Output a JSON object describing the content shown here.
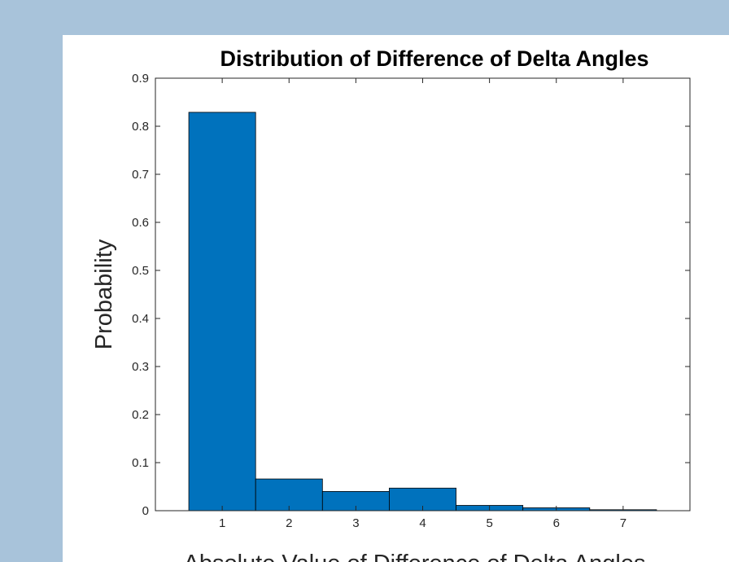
{
  "chart_data": {
    "type": "bar",
    "title": "Distribution of Difference of Delta Angles",
    "xlabel": "Absolute Value of Difference of Delta Angles",
    "ylabel": "Probability",
    "categories": [
      "1",
      "2",
      "3",
      "4",
      "5",
      "6",
      "7"
    ],
    "values": [
      0.829,
      0.066,
      0.04,
      0.047,
      0.011,
      0.006,
      0.002
    ],
    "xlim": [
      0,
      8
    ],
    "ylim": [
      0,
      0.9
    ],
    "yticks": [
      "0",
      "0.1",
      "0.2",
      "0.3",
      "0.4",
      "0.5",
      "0.6",
      "0.7",
      "0.8",
      "0.9"
    ],
    "grid": false,
    "bar_color": "#0072bd",
    "edge_color": "#000000"
  }
}
